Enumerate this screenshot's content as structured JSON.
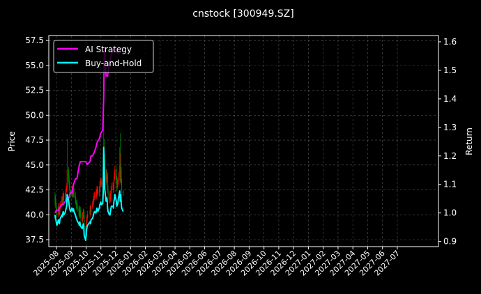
{
  "chart_data": {
    "type": "line",
    "title": "cnstock [300949.SZ]",
    "ylabel_left": "Price",
    "ylabel_right": "Return",
    "grid": true,
    "legend_position": "top-left",
    "x_tick_labels": [
      "2025-08",
      "2025-09",
      "2025-10",
      "2025-11",
      "2025-12",
      "2026-01",
      "2026-02",
      "2026-03",
      "2026-04",
      "2026-05",
      "2026-06",
      "2026-07",
      "2026-08",
      "2026-09",
      "2026-10",
      "2026-11",
      "2026-12",
      "2027-01",
      "2027-02",
      "2027-03",
      "2027-04",
      "2027-05",
      "2027-06",
      "2027-07"
    ],
    "y_left_ticks": [
      "37.5",
      "40.0",
      "42.5",
      "45.0",
      "47.5",
      "50.0",
      "52.5",
      "55.0",
      "57.5"
    ],
    "y_right_ticks": [
      "0.9",
      "1.0",
      "1.1",
      "1.2",
      "1.3",
      "1.4",
      "1.5",
      "1.6"
    ],
    "ylim_left": [
      36.8,
      58.0
    ],
    "ylim_right": [
      0.882,
      1.622
    ],
    "colors": {
      "background": "#000000",
      "ai_strategy": "#ff00ff",
      "buy_and_hold": "#00ffff",
      "candle_up": "#ff0000",
      "candle_down": "#008000",
      "grid": "#555555",
      "text": "#ffffff"
    },
    "candles": {
      "note_days": "day index from 2025-07-28",
      "days": [
        0,
        1,
        2,
        3,
        4,
        7,
        8,
        9,
        10,
        11,
        14,
        15,
        16,
        17,
        18,
        21,
        22,
        23,
        24,
        25,
        28,
        29,
        30,
        31,
        32,
        35,
        36,
        37,
        38,
        39,
        42,
        43,
        44,
        45,
        46,
        49,
        50,
        51,
        52,
        53,
        56,
        57,
        58,
        59,
        60,
        63,
        64,
        65,
        66,
        67,
        72,
        73,
        74,
        77,
        78,
        79,
        80,
        81,
        84,
        85,
        86,
        87,
        88,
        91,
        92,
        93,
        94,
        95,
        98,
        99,
        100,
        101,
        102,
        105,
        106,
        107,
        108,
        109,
        112,
        113,
        114,
        115,
        116,
        119,
        120,
        121,
        122,
        123,
        126,
        127,
        128,
        129,
        130,
        133,
        134,
        135,
        136,
        137,
        140
      ],
      "open": [
        41.8,
        41.6,
        41.0,
        40.8,
        40.2,
        40.0,
        40.8,
        40.5,
        40.2,
        40.8,
        41.0,
        41.5,
        41.2,
        41.8,
        42.0,
        41.5,
        41.9,
        42.2,
        42.5,
        42.8,
        44.5,
        43.6,
        43.0,
        42.5,
        42.2,
        42.0,
        42.5,
        42.2,
        42.0,
        42.4,
        42.0,
        41.5,
        41.2,
        41.0,
        40.8,
        40.6,
        40.2,
        40.0,
        40.5,
        40.0,
        39.8,
        39.5,
        39.8,
        40.2,
        39.9,
        38.5,
        37.8,
        38.5,
        39.4,
        39.8,
        40.0,
        40.5,
        40.2,
        40.8,
        41.0,
        41.2,
        41.5,
        41.8,
        42.0,
        41.8,
        42.2,
        42.5,
        42.4,
        42.0,
        42.5,
        43.0,
        43.2,
        43.4,
        43.0,
        43.2,
        44.8,
        46.0,
        45.5,
        44.0,
        43.5,
        44.0,
        43.8,
        42.5,
        42.0,
        41.5,
        41.5,
        42.0,
        42.5,
        42.8,
        42.8,
        42.5,
        43.5,
        43.8,
        44.5,
        43.5,
        42.8,
        43.0,
        43.2,
        43.8,
        45.0,
        43.5,
        44.5,
        43.2,
        42.5
      ],
      "close": [
        41.5,
        41.0,
        40.8,
        40.2,
        40.0,
        40.8,
        40.5,
        40.2,
        40.8,
        41.0,
        41.5,
        41.2,
        41.8,
        42.0,
        41.5,
        41.9,
        42.2,
        42.5,
        42.8,
        44.5,
        43.6,
        43.0,
        42.5,
        42.2,
        42.0,
        42.5,
        42.2,
        42.0,
        42.4,
        42.0,
        41.5,
        41.2,
        41.0,
        40.8,
        40.6,
        40.2,
        40.0,
        40.5,
        40.0,
        39.8,
        39.5,
        39.8,
        40.2,
        39.9,
        38.5,
        37.8,
        38.5,
        39.4,
        39.8,
        40.0,
        40.5,
        40.2,
        40.8,
        41.0,
        41.2,
        41.5,
        41.8,
        42.0,
        41.8,
        42.2,
        42.5,
        42.4,
        42.0,
        42.5,
        43.0,
        43.2,
        43.4,
        43.0,
        43.2,
        44.8,
        46.0,
        45.5,
        44.0,
        43.5,
        44.0,
        43.8,
        42.5,
        42.0,
        41.5,
        41.5,
        42.0,
        42.5,
        42.8,
        42.8,
        42.5,
        43.5,
        43.8,
        44.5,
        43.5,
        42.8,
        43.0,
        43.2,
        43.8,
        45.0,
        43.5,
        44.5,
        43.2,
        42.5,
        42.0
      ],
      "high": [
        42.3,
        42.0,
        41.4,
        41.0,
        40.6,
        41.2,
        41.0,
        40.8,
        41.2,
        41.4,
        41.9,
        41.8,
        42.2,
        42.4,
        42.2,
        42.2,
        42.6,
        42.9,
        43.2,
        47.6,
        44.8,
        44.0,
        43.4,
        42.8,
        42.5,
        42.9,
        42.8,
        42.5,
        42.8,
        42.7,
        42.3,
        41.8,
        41.5,
        41.3,
        41.2,
        40.9,
        40.7,
        40.9,
        40.8,
        40.4,
        40.2,
        40.3,
        40.6,
        40.6,
        40.4,
        38.9,
        38.8,
        39.8,
        40.1,
        40.4,
        40.9,
        40.9,
        41.2,
        41.4,
        41.6,
        41.9,
        42.2,
        42.3,
        42.4,
        42.6,
        42.9,
        42.9,
        42.8,
        42.8,
        43.4,
        43.6,
        43.8,
        43.7,
        43.6,
        45.5,
        56.6,
        47.6,
        46.2,
        44.6,
        44.6,
        44.4,
        44.2,
        43.0,
        42.4,
        42.2,
        42.4,
        42.9,
        43.2,
        43.3,
        43.2,
        43.9,
        44.4,
        44.9,
        44.8,
        43.9,
        43.6,
        43.8,
        44.3,
        46.8,
        48.2,
        46.2,
        44.8,
        43.6,
        42.4
      ],
      "low": [
        41.0,
        40.7,
        40.4,
        39.8,
        39.7,
        39.7,
        40.1,
        39.9,
        40.0,
        40.6,
        40.8,
        40.9,
        41.0,
        41.5,
        41.2,
        41.3,
        41.7,
        41.9,
        42.3,
        42.6,
        43.2,
        42.7,
        42.2,
        41.9,
        41.7,
        41.8,
        41.8,
        41.7,
        41.8,
        41.7,
        41.1,
        40.9,
        40.6,
        40.4,
        40.3,
        39.9,
        39.6,
        39.7,
        39.7,
        39.4,
        39.2,
        39.2,
        39.6,
        39.7,
        38.3,
        37.6,
        37.6,
        38.3,
        39.2,
        39.6,
        39.8,
        40.0,
        40.0,
        40.6,
        40.8,
        41.0,
        41.3,
        41.5,
        41.6,
        41.6,
        41.9,
        42.1,
        41.8,
        41.8,
        42.2,
        42.7,
        42.9,
        42.8,
        42.8,
        43.0,
        44.5,
        45.0,
        43.6,
        43.0,
        43.2,
        43.4,
        42.2,
        41.6,
        41.2,
        41.1,
        41.3,
        41.8,
        42.2,
        42.5,
        42.2,
        42.3,
        43.3,
        43.6,
        43.2,
        42.4,
        42.6,
        42.8,
        43.0,
        43.4,
        43.2,
        43.2,
        43.0,
        42.2,
        41.8
      ]
    },
    "series": [
      {
        "name": "AI Strategy",
        "axis": "right",
        "days": [
          0,
          3,
          7,
          10,
          14,
          17,
          21,
          24,
          28,
          31,
          35,
          38,
          42,
          45,
          49,
          52,
          56,
          59,
          63,
          66,
          72,
          74,
          77,
          80,
          84,
          87,
          91,
          94,
          98,
          100,
          101,
          102,
          103,
          105,
          108,
          112,
          115,
          119,
          122,
          126,
          129,
          133,
          137,
          140
        ],
        "values": [
          1.0,
          1.01,
          1.01,
          1.02,
          1.03,
          1.03,
          1.04,
          1.05,
          1.05,
          1.07,
          1.07,
          1.1,
          1.12,
          1.12,
          1.16,
          1.18,
          1.18,
          1.18,
          1.18,
          1.17,
          1.18,
          1.2,
          1.2,
          1.21,
          1.23,
          1.25,
          1.26,
          1.28,
          1.29,
          1.4,
          1.54,
          1.58,
          1.53,
          1.48,
          1.48,
          1.53,
          1.55,
          1.57,
          1.58,
          1.57,
          1.56,
          1.57,
          1.58,
          1.58
        ]
      },
      {
        "name": "Buy-and-Hold",
        "axis": "right",
        "days": [
          0,
          1,
          2,
          3,
          4,
          7,
          8,
          9,
          10,
          11,
          14,
          15,
          16,
          17,
          18,
          21,
          22,
          23,
          24,
          25,
          28,
          29,
          30,
          31,
          32,
          35,
          36,
          37,
          38,
          39,
          42,
          43,
          44,
          45,
          46,
          49,
          50,
          51,
          52,
          53,
          56,
          57,
          58,
          59,
          60,
          63,
          64,
          65,
          66,
          67,
          72,
          73,
          74,
          77,
          78,
          79,
          80,
          81,
          84,
          85,
          86,
          87,
          88,
          91,
          92,
          93,
          94,
          95,
          98,
          99,
          100,
          101,
          102,
          105,
          106,
          107,
          108,
          109,
          112,
          113,
          114,
          115,
          116,
          119,
          120,
          121,
          122,
          123,
          126,
          127,
          128,
          129,
          130,
          133,
          134,
          135,
          136,
          137,
          140
        ],
        "values": [
          0.993,
          0.981,
          0.976,
          0.962,
          0.957,
          0.976,
          0.969,
          0.962,
          0.976,
          0.981,
          0.993,
          0.986,
          1.0,
          1.005,
          0.993,
          1.002,
          1.01,
          1.017,
          1.024,
          1.065,
          1.043,
          1.029,
          1.017,
          1.01,
          1.005,
          1.017,
          1.01,
          1.005,
          1.014,
          1.005,
          0.993,
          0.986,
          0.981,
          0.976,
          0.971,
          0.962,
          0.957,
          0.969,
          0.957,
          0.952,
          0.945,
          0.952,
          0.962,
          0.955,
          0.921,
          0.904,
          0.921,
          0.943,
          0.952,
          0.957,
          0.969,
          0.962,
          0.976,
          0.981,
          0.986,
          0.993,
          1.0,
          1.005,
          1.0,
          1.01,
          1.017,
          1.014,
          1.005,
          1.017,
          1.029,
          1.033,
          1.038,
          1.029,
          1.033,
          1.072,
          1.23,
          1.17,
          1.086,
          1.041,
          1.053,
          1.048,
          1.017,
          1.005,
          0.993,
          0.993,
          1.005,
          1.017,
          1.024,
          1.024,
          1.017,
          1.041,
          1.048,
          1.065,
          1.041,
          1.024,
          1.029,
          1.033,
          1.048,
          1.077,
          1.041,
          1.065,
          1.033,
          1.017,
          1.005
        ]
      }
    ]
  }
}
